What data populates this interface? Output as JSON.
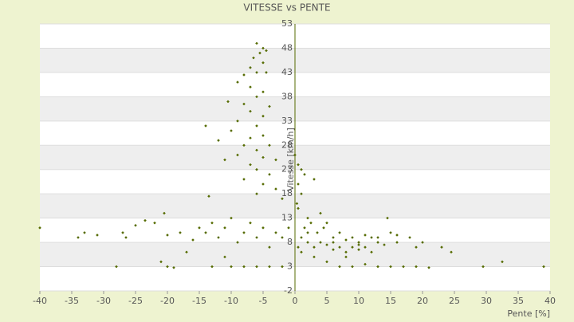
{
  "chart_data": {
    "type": "scatter",
    "title": "VITESSE vs PENTE",
    "x_label": "Pente [%]",
    "y_label": "Vitesse [km/h]",
    "color": "#556b00",
    "grid": true,
    "xlim": [
      -40,
      40
    ],
    "xticks": [
      -40,
      -35,
      -30,
      -25,
      -20,
      -15,
      -10,
      -5,
      0,
      5,
      10,
      15,
      20,
      25,
      30,
      35,
      40
    ],
    "ylim": [
      -2,
      53
    ],
    "yticks": [
      -2,
      3,
      8,
      13,
      18,
      23,
      28,
      33,
      38,
      43,
      48,
      53
    ],
    "x": [
      -6,
      -5,
      -4.5,
      -5.5,
      -6.5,
      -5,
      -7,
      -6,
      -4.5,
      -8,
      -9,
      -7,
      -5,
      -6,
      -10.5,
      -8,
      -4,
      -7,
      -5,
      -9,
      -6,
      -14,
      -10,
      -5,
      -7,
      -12,
      -8,
      -4,
      -6,
      -9,
      -5,
      -11,
      -3,
      -7,
      -6,
      -4,
      -8,
      -5,
      -3,
      -6,
      -13.5,
      -2,
      0,
      0.5,
      1,
      1.5,
      3,
      0.5,
      1,
      0.3,
      0.5,
      -40,
      -34,
      -33,
      -31,
      -27,
      -26.5,
      -25,
      -23.5,
      -22,
      -20,
      -20.5,
      -18,
      -16,
      -15,
      -14,
      -13,
      -12,
      -11,
      -10,
      -9,
      -8,
      -7,
      -6,
      -5,
      -4,
      -3,
      -2,
      -1,
      -21,
      -17,
      -13,
      -11,
      -10,
      -8,
      -6,
      -4,
      -2,
      -28,
      -20,
      -19,
      1,
      2,
      3,
      4,
      5,
      6,
      7,
      8,
      9,
      10,
      11,
      12,
      13,
      14,
      15,
      16,
      18,
      19,
      1.5,
      2.5,
      3.5,
      4.5,
      6,
      7,
      8,
      9,
      10,
      11,
      12,
      13,
      14.5,
      3,
      5,
      7,
      9,
      11,
      13,
      15,
      17,
      19,
      21,
      23,
      24.5,
      29.5,
      32.5,
      39,
      2,
      4,
      5,
      0.5,
      1,
      2,
      6,
      8,
      10,
      16,
      20
    ],
    "values": [
      49,
      48,
      47.5,
      47,
      46,
      45,
      44,
      43,
      43,
      42.5,
      41,
      40,
      39,
      38,
      37,
      36.5,
      36,
      35,
      34,
      33,
      32,
      32,
      31,
      30,
      29.5,
      29,
      28,
      28,
      27,
      26,
      25.5,
      25,
      25,
      24,
      23,
      22,
      21,
      20,
      19,
      18,
      17.5,
      17,
      26,
      24,
      23,
      22,
      21,
      20,
      18,
      16,
      15,
      11,
      9,
      10,
      9.5,
      10,
      9,
      11.5,
      12.5,
      12,
      9.5,
      14,
      10,
      8.5,
      11,
      10,
      12,
      9,
      11,
      13,
      8,
      10,
      12,
      9,
      11,
      7,
      10,
      9,
      11,
      4,
      6,
      3,
      5,
      3,
      3,
      3,
      3,
      3,
      3,
      3,
      2.8,
      9,
      8,
      7,
      8,
      7.5,
      8,
      7,
      8.5,
      7,
      8,
      7,
      9,
      8,
      7.5,
      10,
      8,
      9,
      7,
      11,
      12,
      10,
      11,
      9,
      10,
      6,
      9,
      6.5,
      9.5,
      6,
      9,
      13,
      5,
      4,
      3,
      3,
      3.5,
      3,
      3,
      3,
      3,
      2.8,
      7,
      6,
      3,
      4,
      3,
      13,
      14,
      12,
      7,
      6,
      10,
      6.5,
      5,
      7.5,
      9.5,
      8
    ]
  }
}
